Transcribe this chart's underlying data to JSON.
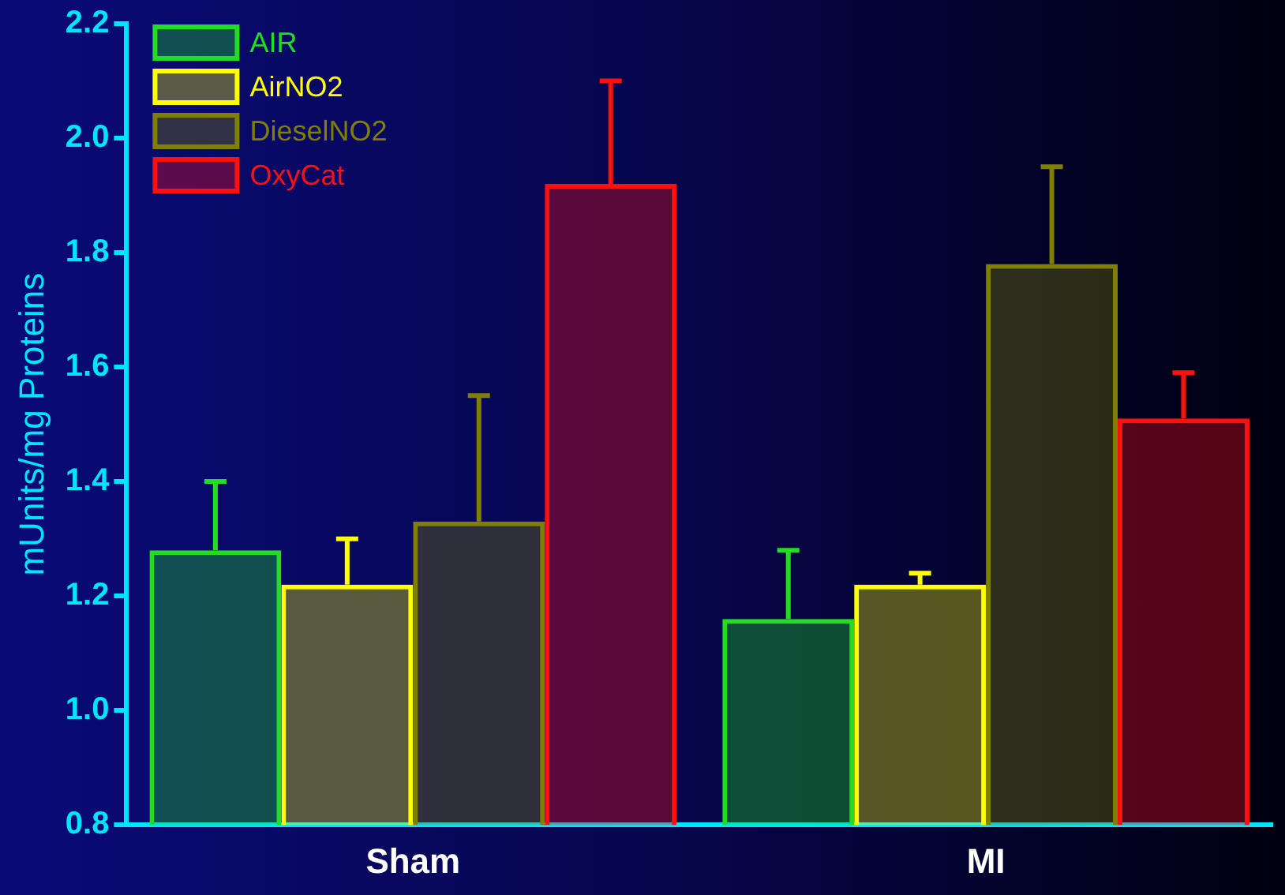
{
  "chart_data": {
    "type": "bar",
    "ylabel": "mUnits/mg Proteins",
    "categories": [
      "Sham",
      "MI"
    ],
    "series": [
      {
        "name": "AIR",
        "color": "#22dd22",
        "values": [
          1.28,
          1.16
        ],
        "errors": [
          [
            1.28,
            1.4
          ],
          [
            1.16,
            1.28
          ]
        ]
      },
      {
        "name": "AirNO2",
        "color": "#ffff00",
        "values": [
          1.22,
          1.22
        ],
        "errors": [
          [
            1.22,
            1.3
          ],
          [
            1.22,
            1.24
          ]
        ]
      },
      {
        "name": "DieselNO2",
        "color": "#808000",
        "values": [
          1.33,
          1.78
        ],
        "errors": [
          [
            1.33,
            1.55
          ],
          [
            1.78,
            1.95
          ]
        ]
      },
      {
        "name": "OxyCat",
        "color": "#ff1010",
        "values": [
          1.92,
          1.51
        ],
        "errors": [
          [
            1.92,
            2.1
          ],
          [
            1.51,
            1.59
          ]
        ]
      }
    ],
    "ylim": [
      0.8,
      2.2
    ],
    "yticks": [
      {
        "value": 0.8,
        "label": "0.8"
      },
      {
        "value": 1,
        "label": "1.0"
      },
      {
        "value": 1.2,
        "label": "1.2"
      },
      {
        "value": 1.4,
        "label": "1.4"
      },
      {
        "value": 1.6,
        "label": "1.6"
      },
      {
        "value": 1.8,
        "label": "1.8"
      },
      {
        "value": 2,
        "label": "2.0"
      },
      {
        "value": 2.2,
        "label": "2.2"
      }
    ],
    "grid": false,
    "legend": "top left"
  }
}
